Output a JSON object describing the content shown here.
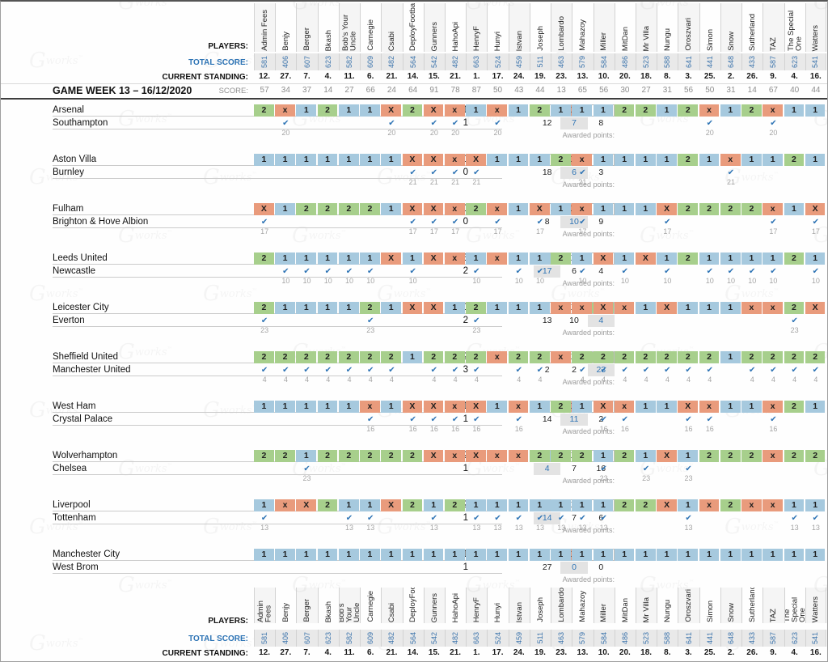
{
  "meta": {
    "gameweek_title": "GAME WEEK 13 – 16/12/2020"
  },
  "labels": {
    "players": "PLAYERS:",
    "total_score": "TOTAL SCORE:",
    "current_standing": "CURRENT STANDING:",
    "score": "SCORE:",
    "awarded_points": "Awarded points:",
    "watermark_initial": "G",
    "watermark_text": "works",
    "watermark_tm": "™",
    "checkmark": "✔"
  },
  "colors": {
    "home_win": "#a6c9de",
    "draw": "#e99b7c",
    "away_win": "#a7cf8c",
    "check_blue": "#2e74b5",
    "highlight_bg": "#e3e3e3",
    "band_gray": "#e9e9e9"
  },
  "players": [
    {
      "name": "Admin Fees",
      "total_score": "581",
      "standing": "12.",
      "score": "57"
    },
    {
      "name": "Benjy",
      "total_score": "406",
      "standing": "27.",
      "score": "34"
    },
    {
      "name": "Berger",
      "total_score": "607",
      "standing": "7.",
      "score": "37"
    },
    {
      "name": "Bkash",
      "total_score": "623",
      "standing": "4.",
      "score": "14"
    },
    {
      "name": "Bob's Your Uncle",
      "total_score": "582",
      "standing": "11.",
      "score": "27"
    },
    {
      "name": "Carnegie",
      "total_score": "609",
      "standing": "6.",
      "score": "66"
    },
    {
      "name": "Csabi",
      "total_score": "482",
      "standing": "21.",
      "score": "24"
    },
    {
      "name": "DeployFootball",
      "total_score": "564",
      "standing": "14.",
      "score": "64"
    },
    {
      "name": "Gunners",
      "total_score": "542",
      "standing": "15.",
      "score": "91"
    },
    {
      "name": "HahoApi",
      "total_score": "482",
      "standing": "21.",
      "score": "78"
    },
    {
      "name": "HenryF",
      "total_score": "663",
      "standing": "1.",
      "score": "87"
    },
    {
      "name": "Hunyi",
      "total_score": "524",
      "standing": "17.",
      "score": "50"
    },
    {
      "name": "Istvan",
      "total_score": "459",
      "standing": "24.",
      "score": "43"
    },
    {
      "name": "Joseph",
      "total_score": "511",
      "standing": "19.",
      "score": "44"
    },
    {
      "name": "Lombardo",
      "total_score": "463",
      "standing": "23.",
      "score": "13"
    },
    {
      "name": "Mahazoy",
      "total_score": "579",
      "standing": "13.",
      "score": "65"
    },
    {
      "name": "Miller",
      "total_score": "584",
      "standing": "10.",
      "score": "56"
    },
    {
      "name": "MitDan",
      "total_score": "486",
      "standing": "20.",
      "score": "30"
    },
    {
      "name": "Mr Villa",
      "total_score": "523",
      "standing": "18.",
      "score": "27"
    },
    {
      "name": "Nungu",
      "total_score": "588",
      "standing": "8.",
      "score": "31"
    },
    {
      "name": "Oroszvari",
      "total_score": "641",
      "standing": "3.",
      "score": "56"
    },
    {
      "name": "Simon",
      "total_score": "441",
      "standing": "25.",
      "score": "50"
    },
    {
      "name": "Snow",
      "total_score": "648",
      "standing": "2.",
      "score": "31"
    },
    {
      "name": "Sutherland",
      "total_score": "433",
      "standing": "26.",
      "score": "14"
    },
    {
      "name": "TAZ",
      "total_score": "587",
      "standing": "9.",
      "score": "67"
    },
    {
      "name": "The Special One",
      "total_score": "623",
      "standing": "4.",
      "score": "40"
    },
    {
      "name": "Watters",
      "total_score": "541",
      "standing": "16.",
      "score": "44"
    }
  ],
  "matches": [
    {
      "home": "Arsenal",
      "away": "Southampton",
      "home_score": "1",
      "away_score": "1",
      "result": "X",
      "counts": [
        "12",
        "7",
        "8"
      ],
      "awarded_points": "20",
      "predictions": [
        "2",
        "x",
        "1",
        "2",
        "1",
        "1",
        "X",
        "2",
        "X",
        "x",
        "1",
        "x",
        "1",
        "2",
        "1",
        "1",
        "1",
        "2",
        "2",
        "1",
        "2",
        "x",
        "1",
        "2",
        "x",
        "1",
        "1"
      ]
    },
    {
      "home": "Aston Villa",
      "away": "Burnley",
      "home_score": "0",
      "away_score": "0",
      "result": "X",
      "counts": [
        "18",
        "6",
        "3"
      ],
      "awarded_points": "21",
      "predictions": [
        "1",
        "1",
        "1",
        "1",
        "1",
        "1",
        "1",
        "X",
        "X",
        "x",
        "X",
        "1",
        "1",
        "1",
        "2",
        "x",
        "1",
        "1",
        "1",
        "1",
        "2",
        "1",
        "x",
        "1",
        "1",
        "2",
        "1"
      ]
    },
    {
      "home": "Fulham",
      "away": "Brighton & Hove Albion",
      "home_score": "0",
      "away_score": "0",
      "result": "X",
      "counts": [
        "8",
        "10",
        "9"
      ],
      "awarded_points": "17",
      "predictions": [
        "X",
        "1",
        "2",
        "2",
        "2",
        "2",
        "1",
        "X",
        "X",
        "x",
        "2",
        "x",
        "1",
        "X",
        "1",
        "x",
        "1",
        "1",
        "1",
        "X",
        "2",
        "2",
        "2",
        "2",
        "x",
        "1",
        "X"
      ]
    },
    {
      "home": "Leeds United",
      "away": "Newcastle",
      "home_score": "5",
      "away_score": "2",
      "result": "1",
      "counts": [
        "17",
        "6",
        "4"
      ],
      "awarded_points": "10",
      "predictions": [
        "2",
        "1",
        "1",
        "1",
        "1",
        "1",
        "X",
        "1",
        "X",
        "x",
        "1",
        "x",
        "1",
        "1",
        "2",
        "1",
        "X",
        "1",
        "X",
        "1",
        "2",
        "1",
        "1",
        "1",
        "1",
        "2",
        "1"
      ]
    },
    {
      "home": "Leicester City",
      "away": "Everton",
      "home_score": "0",
      "away_score": "2",
      "result": "2",
      "counts": [
        "13",
        "10",
        "4"
      ],
      "awarded_points": "23",
      "predictions": [
        "2",
        "1",
        "1",
        "1",
        "1",
        "2",
        "1",
        "X",
        "X",
        "1",
        "2",
        "1",
        "1",
        "1",
        "x",
        "x",
        "X",
        "x",
        "1",
        "X",
        "1",
        "1",
        "1",
        "x",
        "x",
        "2",
        "X"
      ]
    },
    {
      "home": "Sheffield United",
      "away": "Manchester United",
      "home_score": "2",
      "away_score": "3",
      "result": "2",
      "counts": [
        "2",
        "2",
        "23"
      ],
      "awarded_points": "4",
      "predictions": [
        "2",
        "2",
        "2",
        "2",
        "2",
        "2",
        "2",
        "1",
        "2",
        "2",
        "2",
        "x",
        "2",
        "2",
        "x",
        "2",
        "2",
        "2",
        "2",
        "2",
        "2",
        "2",
        "1",
        "2",
        "2",
        "2",
        "2"
      ]
    },
    {
      "home": "West Ham",
      "away": "Crystal Palace",
      "home_score": "1",
      "away_score": "1",
      "result": "X",
      "counts": [
        "14",
        "11",
        "2"
      ],
      "awarded_points": "16",
      "predictions": [
        "1",
        "1",
        "1",
        "1",
        "1",
        "x",
        "1",
        "X",
        "X",
        "x",
        "X",
        "1",
        "x",
        "1",
        "2",
        "1",
        "X",
        "x",
        "1",
        "1",
        "X",
        "x",
        "1",
        "1",
        "x",
        "2",
        "1"
      ]
    },
    {
      "home": "Wolverhampton",
      "away": "Chelsea",
      "home_score": "2",
      "away_score": "1",
      "result": "1",
      "counts": [
        "4",
        "7",
        "16"
      ],
      "awarded_points": "23",
      "predictions": [
        "2",
        "2",
        "1",
        "2",
        "2",
        "2",
        "2",
        "2",
        "X",
        "x",
        "X",
        "x",
        "x",
        "2",
        "2",
        "2",
        "1",
        "2",
        "1",
        "X",
        "1",
        "2",
        "2",
        "2",
        "x",
        "2",
        "2"
      ]
    },
    {
      "home": "Liverpool",
      "away": "Tottenham",
      "home_score": "2",
      "away_score": "1",
      "result": "1",
      "counts": [
        "14",
        "7",
        "6"
      ],
      "awarded_points": "13",
      "predictions": [
        "1",
        "x",
        "X",
        "2",
        "1",
        "1",
        "X",
        "2",
        "1",
        "2",
        "1",
        "1",
        "1",
        "1",
        "1",
        "1",
        "1",
        "2",
        "2",
        "X",
        "1",
        "x",
        "2",
        "x",
        "x",
        "1",
        "1"
      ]
    },
    {
      "home": "Manchester City",
      "away": "West Brom",
      "home_score": "1",
      "away_score": "1",
      "result": "X",
      "counts": [
        "27",
        "0",
        "0"
      ],
      "awarded_points": "",
      "predictions": [
        "1",
        "1",
        "1",
        "1",
        "1",
        "1",
        "1",
        "1",
        "1",
        "1",
        "1",
        "1",
        "1",
        "1",
        "1",
        "1",
        "1",
        "1",
        "1",
        "1",
        "1",
        "1",
        "1",
        "1",
        "1",
        "1",
        "1"
      ]
    }
  ],
  "outcome_headers": [
    "1",
    "X",
    "2"
  ]
}
